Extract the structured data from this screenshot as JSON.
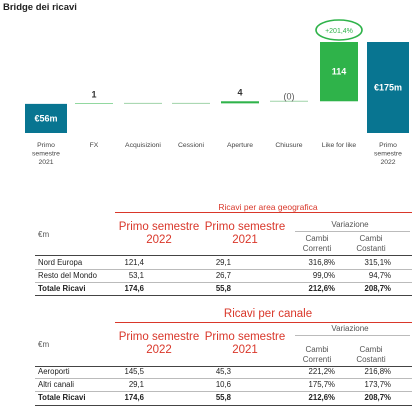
{
  "chart_data": {
    "type": "bar",
    "title": "Bridge dei ricavi",
    "subtype": "waterfall",
    "categories": [
      "Primo semestre 2021",
      "FX",
      "Acquisizioni",
      "Cessioni",
      "Aperture",
      "Chiusure",
      "Like for like",
      "Primo semestre 2022"
    ],
    "category_lines": [
      [
        "Primo",
        "semestre",
        "2021"
      ],
      [
        "FX"
      ],
      [
        "Acquisizioni"
      ],
      [
        "Cessioni"
      ],
      [
        "Aperture"
      ],
      [
        "Chiusure"
      ],
      [
        "Like for like"
      ],
      [
        "Primo",
        "semestre",
        "2022"
      ]
    ],
    "values": [
      56,
      1,
      0,
      0,
      4,
      0,
      114,
      175
    ],
    "value_labels": [
      "€56m",
      "1",
      "",
      "",
      "4",
      "(0)",
      "114",
      "€175m"
    ],
    "kinds": [
      "total",
      "delta",
      "delta",
      "delta",
      "delta",
      "delta",
      "delta",
      "total"
    ],
    "colors": {
      "total": "#087591",
      "increase": "#2fb34a",
      "annotation_border": "#2fb34a"
    },
    "annotation": "+201,4%"
  },
  "table_geo": {
    "title": "Ricavi per area geografica",
    "unit_label": "€m",
    "col1": "Primo semestre 2022",
    "col2": "Primo semestre 2021",
    "variazione": "Variazione",
    "sub1": "Cambi Correnti",
    "sub2": "Cambi Costanti",
    "rows": [
      {
        "label": "Nord Europa",
        "v1": "121,4",
        "v2": "29,1",
        "v3": "316,8%",
        "v4": "315,1%"
      },
      {
        "label": "Resto del Mondo",
        "v1": "53,1",
        "v2": "26,7",
        "v3": "99,0%",
        "v4": "94,7%"
      },
      {
        "label": "Totale Ricavi",
        "v1": "174,6",
        "v2": "55,8",
        "v3": "212,6%",
        "v4": "208,7%"
      }
    ]
  },
  "table_channel": {
    "title": "Ricavi per canale",
    "unit_label": "€m",
    "col1": "Primo semestre 2022",
    "col2": "Primo semestre 2021",
    "variazione": "Variazione",
    "sub1": "Cambi Correnti",
    "sub2": "Cambi Costanti",
    "rows": [
      {
        "label": "Aeroporti",
        "v1": "145,5",
        "v2": "45,3",
        "v3": "221,2%",
        "v4": "216,8%"
      },
      {
        "label": "Altri canali",
        "v1": "29,1",
        "v2": "10,6",
        "v3": "175,7%",
        "v4": "173,7%"
      },
      {
        "label": "Totale Ricavi",
        "v1": "174,6",
        "v2": "55,8",
        "v3": "212,6%",
        "v4": "208,7%"
      }
    ]
  }
}
